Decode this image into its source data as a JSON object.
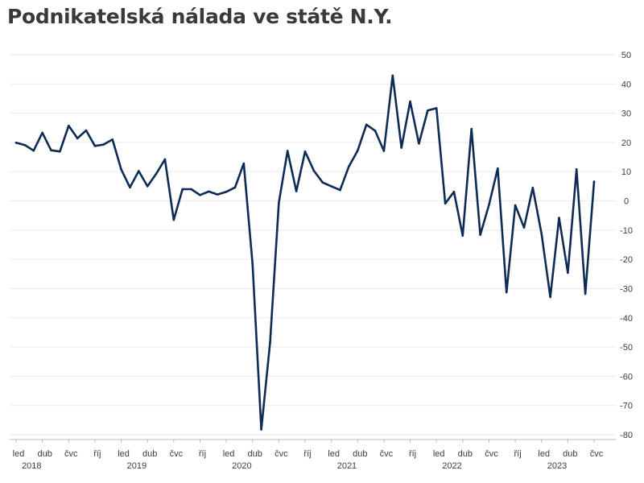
{
  "chart_data": {
    "type": "line",
    "title": "Podnikatelská nálada ve státě N.Y.",
    "xlabel": "",
    "ylabel": "",
    "ylim": [
      -80,
      50
    ],
    "y_ticks": [
      50,
      40,
      30,
      20,
      10,
      0,
      -10,
      -20,
      -30,
      -40,
      -50,
      -60,
      -70,
      -80
    ],
    "x_tick_labels": [
      "led",
      "dub",
      "čvc",
      "říj",
      "led",
      "dub",
      "čvc",
      "říj",
      "led",
      "dub",
      "čvc",
      "říj",
      "led",
      "dub",
      "čvc",
      "říj",
      "led",
      "dub",
      "čvc",
      "říj",
      "led",
      "dub",
      "čvc"
    ],
    "year_labels": [
      "2018",
      "2019",
      "2020",
      "2021",
      "2022",
      "2023"
    ],
    "grid": true,
    "colors": {
      "line": "#0d2b55",
      "grid": "#ebebeb",
      "text": "#3c3c3c",
      "title": "#3a3a3a"
    },
    "series": [
      {
        "x": [
          "2018-01",
          "2018-02",
          "2018-03",
          "2018-04",
          "2018-05",
          "2018-06",
          "2018-07",
          "2018-08",
          "2018-09",
          "2018-10",
          "2018-11",
          "2018-12",
          "2019-01",
          "2019-02",
          "2019-03",
          "2019-04",
          "2019-05",
          "2019-06",
          "2019-07",
          "2019-08",
          "2019-09",
          "2019-10",
          "2019-11",
          "2019-12",
          "2020-01",
          "2020-02",
          "2020-03",
          "2020-04",
          "2020-05",
          "2020-06",
          "2020-07",
          "2020-08",
          "2020-09",
          "2020-10",
          "2020-11",
          "2020-12",
          "2021-01",
          "2021-02",
          "2021-03",
          "2021-04",
          "2021-05",
          "2021-06",
          "2021-07",
          "2021-08",
          "2021-09",
          "2021-10",
          "2021-11",
          "2021-12",
          "2022-01",
          "2022-02",
          "2022-03",
          "2022-04",
          "2022-05",
          "2022-06",
          "2022-07",
          "2022-08",
          "2022-09",
          "2022-10",
          "2022-11",
          "2022-12",
          "2023-01",
          "2023-02",
          "2023-03",
          "2023-04",
          "2023-05",
          "2023-06",
          "2023-07"
        ],
        "values": [
          19.9,
          19.1,
          17.2,
          23.3,
          17.3,
          16.9,
          25.7,
          21.4,
          24.1,
          18.8,
          19.3,
          21.0,
          10.8,
          4.6,
          10.2,
          5.0,
          9.3,
          14.2,
          -6.5,
          4.0,
          4.0,
          2.0,
          3.2,
          2.2,
          3.1,
          4.6,
          12.8,
          -21.5,
          -78.2,
          -48.5,
          -0.6,
          17.1,
          3.3,
          16.9,
          10.3,
          6.3,
          5.0,
          3.7,
          11.8,
          17.2,
          26.1,
          24.0,
          17.1,
          42.9,
          18.2,
          34.0,
          19.6,
          30.9,
          31.7,
          -0.9,
          3.1,
          -11.9,
          24.6,
          -11.6,
          -1.3,
          11.1,
          -31.3,
          -1.5,
          -9.1,
          4.5,
          -11.2,
          -32.9,
          -5.8,
          -24.6,
          10.8,
          -31.8,
          6.6
        ]
      }
    ]
  }
}
